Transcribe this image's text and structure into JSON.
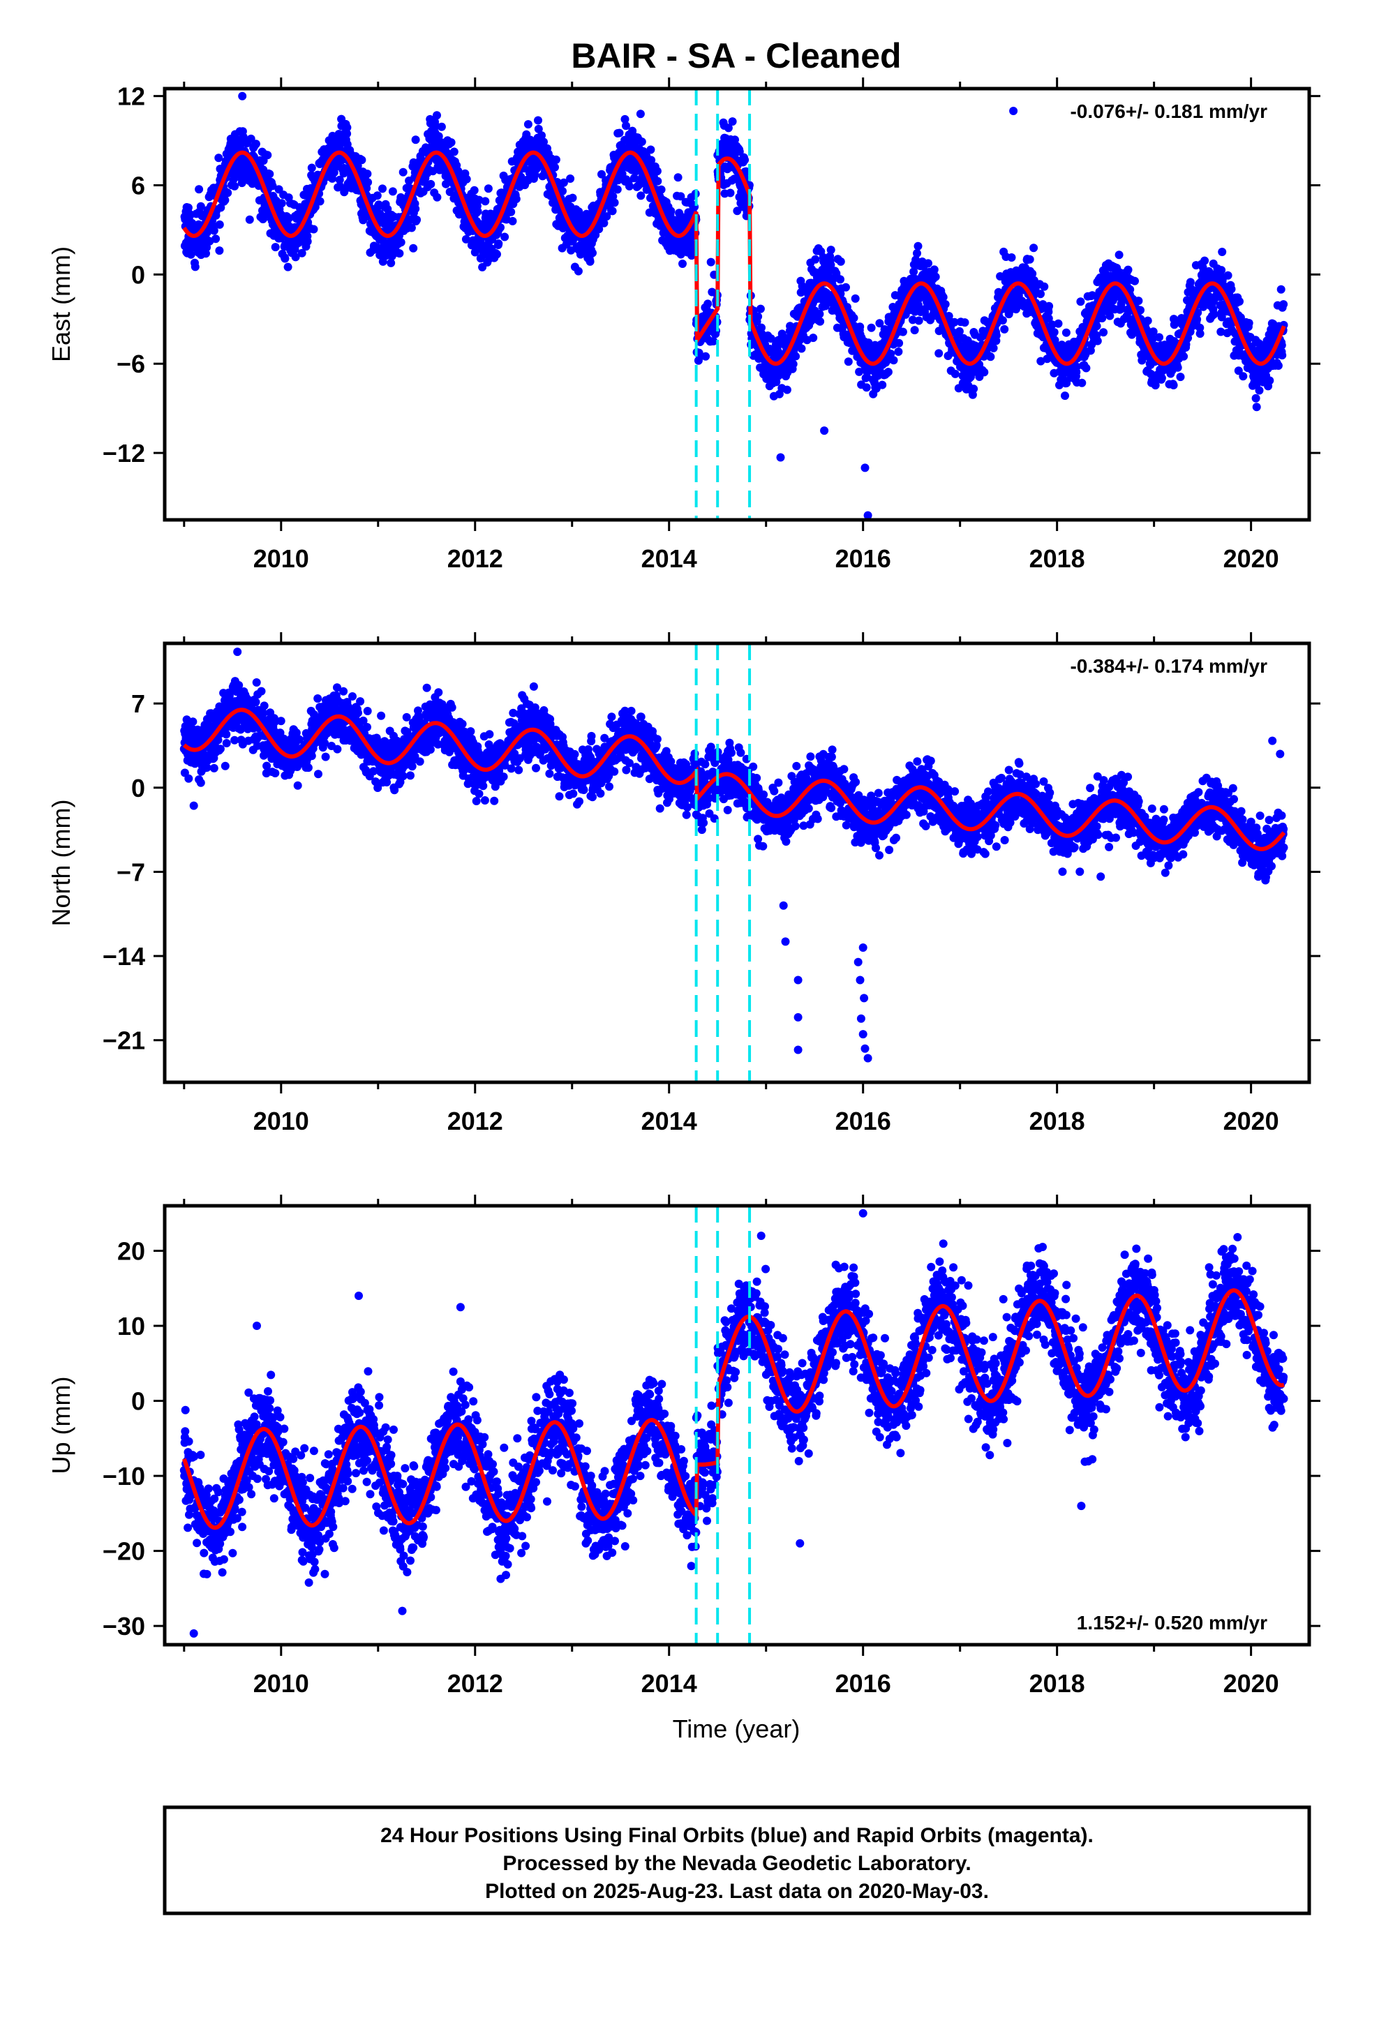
{
  "title": "BAIR  - SA - Cleaned",
  "xlabel": "Time (year)",
  "footer": {
    "line1": "24 Hour Positions Using Final Orbits (blue) and Rapid Orbits (magenta).",
    "line2": "Processed by the Nevada Geodetic Laboratory.",
    "line3": "Plotted on 2025-Aug-23. Last data on 2020-May-03."
  },
  "colors": {
    "points": "#0000ff",
    "fit": "#ff0000",
    "offsets": "#00e5ee",
    "frame": "#000000"
  },
  "chart_data": [
    {
      "type": "scatter",
      "panel": "east",
      "ylabel": "East (mm)",
      "rate_label": "-0.076+/- 0.181 mm/yr",
      "rate_position": "top-right",
      "xlim": [
        2008.8,
        2020.6
      ],
      "ylim": [
        -16.5,
        12.5
      ],
      "x_ticks": [
        2010,
        2012,
        2014,
        2016,
        2018,
        2020
      ],
      "y_ticks": [
        12,
        6,
        0,
        -6,
        -12
      ],
      "y_tick_labels": [
        "12",
        "6",
        "0",
        "−6",
        "−12"
      ],
      "offset_epochs": [
        2014.28,
        2014.5,
        2014.83
      ],
      "segments": [
        {
          "x": [
            2009.0,
            2014.28
          ],
          "center": 5.4,
          "amplitude": 2.8,
          "trend": 0.0
        },
        {
          "x": [
            2014.28,
            2014.5
          ],
          "center": -4.5,
          "amplitude": 0.0,
          "trend": 10.0
        },
        {
          "x": [
            2014.5,
            2014.83
          ],
          "center": 5.0,
          "amplitude": 2.8,
          "trend": 0.0
        },
        {
          "x": [
            2014.83,
            2020.34
          ],
          "center": -3.3,
          "amplitude": 2.7,
          "trend": 0.0
        }
      ],
      "phase_peak_fraction": 0.6,
      "scatter_sd": 1.0,
      "outliers": [
        {
          "x": 2016.05,
          "y": -16.2
        },
        {
          "x": 2016.02,
          "y": -13.0
        },
        {
          "x": 2015.15,
          "y": -12.3
        },
        {
          "x": 2015.6,
          "y": -10.5
        },
        {
          "x": 2017.55,
          "y": 11.0
        },
        {
          "x": 2009.6,
          "y": 12.0
        }
      ]
    },
    {
      "type": "scatter",
      "panel": "north",
      "ylabel": "North (mm)",
      "rate_label": "-0.384+/- 0.174 mm/yr",
      "rate_position": "top-right",
      "xlim": [
        2008.8,
        2020.6
      ],
      "ylim": [
        -24.5,
        12
      ],
      "x_ticks": [
        2010,
        2012,
        2014,
        2016,
        2018,
        2020
      ],
      "y_ticks": [
        7,
        0,
        -7,
        -14,
        -21
      ],
      "y_tick_labels": [
        "7",
        "0",
        "−7",
        "−14",
        "−21"
      ],
      "offset_epochs": [
        2014.28,
        2014.5,
        2014.83
      ],
      "segments": [
        {
          "x": [
            2009.0,
            2014.28
          ],
          "center": 5.0,
          "amplitude": 1.8,
          "trend": -0.55
        },
        {
          "x": [
            2014.28,
            2020.34
          ],
          "center": -0.3,
          "amplitude": 1.6,
          "trend": -0.55
        }
      ],
      "phase_peak_fraction": 0.6,
      "scatter_sd": 1.1,
      "outliers": [
        {
          "x": 2016.05,
          "y": -22.5
        },
        {
          "x": 2016.02,
          "y": -21.7
        },
        {
          "x": 2016.0,
          "y": -20.5
        },
        {
          "x": 2015.98,
          "y": -19.2
        },
        {
          "x": 2016.01,
          "y": -17.5
        },
        {
          "x": 2015.97,
          "y": -16.0
        },
        {
          "x": 2015.95,
          "y": -14.5
        },
        {
          "x": 2016.0,
          "y": -13.3
        },
        {
          "x": 2015.33,
          "y": -21.8
        },
        {
          "x": 2015.33,
          "y": -19.1
        },
        {
          "x": 2015.33,
          "y": -16.0
        },
        {
          "x": 2015.2,
          "y": -12.8
        },
        {
          "x": 2015.18,
          "y": -9.8
        },
        {
          "x": 2018.45,
          "y": -7.4
        },
        {
          "x": 2009.1,
          "y": -1.5
        },
        {
          "x": 2020.22,
          "y": 3.9
        },
        {
          "x": 2020.3,
          "y": 2.8
        },
        {
          "x": 2009.55,
          "y": 11.3
        }
      ]
    },
    {
      "type": "scatter",
      "panel": "up",
      "ylabel": "Up (mm)",
      "rate_label": "1.152+/- 0.520 mm/yr",
      "rate_position": "bottom-right",
      "xlim": [
        2008.8,
        2020.6
      ],
      "ylim": [
        -32.5,
        26
      ],
      "x_ticks": [
        2010,
        2012,
        2014,
        2016,
        2018,
        2020
      ],
      "y_ticks": [
        20,
        10,
        0,
        -10,
        -20,
        -30
      ],
      "y_tick_labels": [
        "20",
        "10",
        "0",
        "−10",
        "−20",
        "−30"
      ],
      "offset_epochs": [
        2014.28,
        2014.5,
        2014.83
      ],
      "segments": [
        {
          "x": [
            2009.0,
            2014.28
          ],
          "center": -10.5,
          "amplitude": 6.5,
          "trend": 0.3
        },
        {
          "x": [
            2014.28,
            2014.5
          ],
          "center": -8.0,
          "amplitude": 0.5,
          "trend": 0.0
        },
        {
          "x": [
            2014.5,
            2020.34
          ],
          "center": 4.5,
          "amplitude": 6.5,
          "trend": 0.7
        }
      ],
      "phase_peak_fraction": 0.82,
      "scatter_sd": 3.0,
      "outliers": [
        {
          "x": 2009.1,
          "y": -31.0
        },
        {
          "x": 2011.25,
          "y": -28.0
        },
        {
          "x": 2015.35,
          "y": -19.0
        },
        {
          "x": 2018.25,
          "y": -14.0
        },
        {
          "x": 2016.0,
          "y": 25.0
        },
        {
          "x": 2014.95,
          "y": 22.0
        },
        {
          "x": 2010.8,
          "y": 14.0
        },
        {
          "x": 2011.85,
          "y": 12.5
        },
        {
          "x": 2009.75,
          "y": 10.0
        }
      ]
    }
  ]
}
